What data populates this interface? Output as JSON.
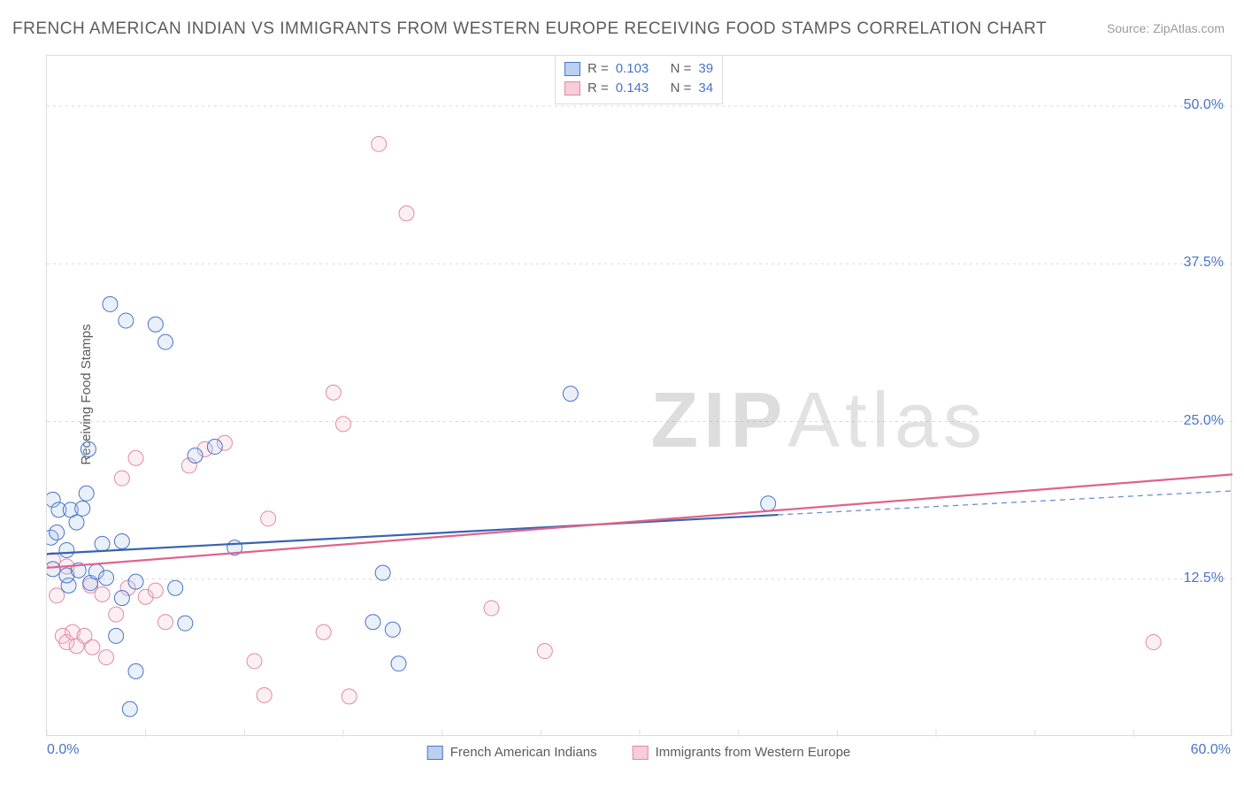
{
  "title": "FRENCH AMERICAN INDIAN VS IMMIGRANTS FROM WESTERN EUROPE RECEIVING FOOD STAMPS CORRELATION CHART",
  "source": "Source: ZipAtlas.com",
  "ylabel": "Receiving Food Stamps",
  "watermark_a": "ZIP",
  "watermark_b": "Atlas",
  "chart": {
    "type": "scatter-with-regression",
    "xlim": [
      0,
      60
    ],
    "ylim": [
      0,
      54
    ],
    "x_axis_min_label": "0.0%",
    "x_axis_max_label": "60.0%",
    "y_ticks": [
      12.5,
      25.0,
      37.5,
      50.0
    ],
    "y_tick_labels": [
      "12.5%",
      "25.0%",
      "37.5%",
      "50.0%"
    ],
    "x_ticks_minor": [
      0,
      5,
      10,
      15,
      20,
      25,
      30,
      35,
      40,
      45,
      50,
      55,
      60
    ],
    "background_color": "#ffffff",
    "grid_color": "#d9d9d9",
    "grid_dash": "3,4",
    "axis_color": "#dcdcdc",
    "marker_radius": 8.5,
    "marker_stroke_width": 1,
    "marker_fill_opacity": 0.25,
    "line_width": 2.2,
    "series": {
      "blue": {
        "label": "French American Indians",
        "legend_R": "0.103",
        "legend_N": "39",
        "stroke": "#4a74c9",
        "fill": "#a9c3ec",
        "line_color": "#3a62b3",
        "dashed_extension_color": "#6a8fd1",
        "regression": {
          "x1": 0,
          "y1": 14.5,
          "x2": 37,
          "y2": 17.6,
          "extend_x2": 60,
          "extend_y2": 19.5
        },
        "points": [
          [
            0.2,
            15.8
          ],
          [
            0.3,
            13.3
          ],
          [
            0.3,
            18.8
          ],
          [
            0.5,
            16.2
          ],
          [
            0.6,
            18.0
          ],
          [
            1.0,
            14.8
          ],
          [
            1.1,
            12.0
          ],
          [
            1.0,
            12.8
          ],
          [
            1.2,
            18.0
          ],
          [
            1.5,
            17.0
          ],
          [
            1.8,
            18.1
          ],
          [
            1.6,
            13.2
          ],
          [
            2.0,
            19.3
          ],
          [
            2.1,
            22.8
          ],
          [
            2.2,
            12.2
          ],
          [
            2.5,
            13.1
          ],
          [
            2.8,
            15.3
          ],
          [
            3.0,
            12.6
          ],
          [
            3.2,
            34.3
          ],
          [
            3.5,
            8.0
          ],
          [
            3.8,
            11.0
          ],
          [
            3.8,
            15.5
          ],
          [
            4.0,
            33.0
          ],
          [
            4.2,
            2.2
          ],
          [
            4.5,
            12.3
          ],
          [
            4.5,
            5.2
          ],
          [
            5.5,
            32.7
          ],
          [
            6.0,
            31.3
          ],
          [
            6.5,
            11.8
          ],
          [
            7.0,
            9.0
          ],
          [
            7.5,
            22.3
          ],
          [
            8.5,
            23.0
          ],
          [
            9.5,
            15.0
          ],
          [
            16.5,
            9.1
          ],
          [
            17.0,
            13.0
          ],
          [
            17.5,
            8.5
          ],
          [
            17.8,
            5.8
          ],
          [
            26.5,
            27.2
          ],
          [
            36.5,
            18.5
          ]
        ]
      },
      "pink": {
        "label": "Immigrants from Western Europe",
        "legend_R": "0.143",
        "legend_N": "34",
        "stroke": "#e18aa3",
        "fill": "#f3c1cf",
        "line_color": "#e06389",
        "regression": {
          "x1": 0,
          "y1": 13.4,
          "x2": 60,
          "y2": 20.8
        },
        "points": [
          [
            0.3,
            14.0
          ],
          [
            0.5,
            11.2
          ],
          [
            0.8,
            8.0
          ],
          [
            1.0,
            7.5
          ],
          [
            1.0,
            13.5
          ],
          [
            1.3,
            8.3
          ],
          [
            1.5,
            7.2
          ],
          [
            1.9,
            8.0
          ],
          [
            2.3,
            7.1
          ],
          [
            2.2,
            12.0
          ],
          [
            2.8,
            11.3
          ],
          [
            3.0,
            6.3
          ],
          [
            3.5,
            9.7
          ],
          [
            3.8,
            20.5
          ],
          [
            4.1,
            11.8
          ],
          [
            4.5,
            22.1
          ],
          [
            5.0,
            11.1
          ],
          [
            5.5,
            11.6
          ],
          [
            6.0,
            9.1
          ],
          [
            7.2,
            21.5
          ],
          [
            8.0,
            22.8
          ],
          [
            9.0,
            23.3
          ],
          [
            10.5,
            6.0
          ],
          [
            11.0,
            3.3
          ],
          [
            11.2,
            17.3
          ],
          [
            14.0,
            8.3
          ],
          [
            14.5,
            27.3
          ],
          [
            15.0,
            24.8
          ],
          [
            15.3,
            3.2
          ],
          [
            16.8,
            47.0
          ],
          [
            18.2,
            41.5
          ],
          [
            22.5,
            10.2
          ],
          [
            25.2,
            6.8
          ],
          [
            56.0,
            7.5
          ]
        ]
      }
    },
    "legend_stats_labels": {
      "R": "R =",
      "N": "N ="
    },
    "swatch_border_blue": "#4a74c9",
    "swatch_fill_blue": "#b9d0f0",
    "swatch_border_pink": "#e18aa3",
    "swatch_fill_pink": "#f6cdd8"
  }
}
